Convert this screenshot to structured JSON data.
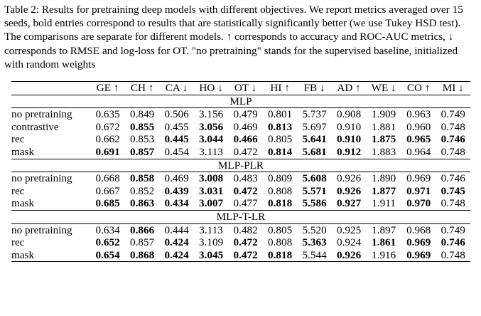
{
  "caption": "Table 2: Results for pretraining deep models with different objectives. We report metrics averaged over 15 seeds, bold entries correspond to results that are statistically significantly better (we use Tukey HSD test). The comparisons are separate for different models. ↑ corresponds to accuracy and ROC-AUC metrics, ↓ corresponds to RMSE and log-loss for OT. \"no pretraining\" stands for the supervised baseline, initialized with random weights",
  "columns": [
    "GE ↑",
    "CH ↑",
    "CA ↓",
    "HO ↓",
    "OT ↓",
    "HI ↑",
    "FB ↓",
    "AD ↑",
    "WE ↓",
    "CO ↑",
    "MI ↓"
  ],
  "sections": [
    {
      "title": "MLP",
      "rows": [
        {
          "name": "no pretraining",
          "values": [
            "0.635",
            "0.849",
            "0.506",
            "3.156",
            "0.479",
            "0.801",
            "5.737",
            "0.908",
            "1.909",
            "0.963",
            "0.749"
          ],
          "bold": [
            false,
            false,
            false,
            false,
            false,
            false,
            false,
            false,
            false,
            false,
            false
          ]
        },
        {
          "name": "contrastive",
          "values": [
            "0.672",
            "0.855",
            "0.455",
            "3.056",
            "0.469",
            "0.813",
            "5.697",
            "0.910",
            "1.881",
            "0.960",
            "0.748"
          ],
          "bold": [
            false,
            true,
            false,
            true,
            false,
            true,
            false,
            false,
            false,
            false,
            false
          ]
        },
        {
          "name": "rec",
          "values": [
            "0.662",
            "0.853",
            "0.445",
            "3.044",
            "0.466",
            "0.805",
            "5.641",
            "0.910",
            "1.875",
            "0.965",
            "0.746"
          ],
          "bold": [
            false,
            false,
            true,
            true,
            true,
            false,
            true,
            true,
            true,
            true,
            true
          ]
        },
        {
          "name": "mask",
          "values": [
            "0.691",
            "0.857",
            "0.454",
            "3.113",
            "0.472",
            "0.814",
            "5.681",
            "0.912",
            "1.883",
            "0.964",
            "0.748"
          ],
          "bold": [
            true,
            true,
            false,
            false,
            false,
            true,
            true,
            true,
            false,
            false,
            false
          ]
        }
      ]
    },
    {
      "title": "MLP-PLR",
      "rows": [
        {
          "name": "no pretraining",
          "values": [
            "0.668",
            "0.858",
            "0.469",
            "3.008",
            "0.483",
            "0.809",
            "5.608",
            "0.926",
            "1.890",
            "0.969",
            "0.746"
          ],
          "bold": [
            false,
            true,
            false,
            true,
            false,
            false,
            true,
            false,
            false,
            false,
            false
          ]
        },
        {
          "name": "rec",
          "values": [
            "0.667",
            "0.852",
            "0.439",
            "3.031",
            "0.472",
            "0.808",
            "5.571",
            "0.926",
            "1.877",
            "0.971",
            "0.745"
          ],
          "bold": [
            false,
            false,
            true,
            true,
            true,
            false,
            true,
            true,
            true,
            true,
            true
          ]
        },
        {
          "name": "mask",
          "values": [
            "0.685",
            "0.863",
            "0.434",
            "3.007",
            "0.477",
            "0.818",
            "5.586",
            "0.927",
            "1.911",
            "0.970",
            "0.748"
          ],
          "bold": [
            true,
            true,
            true,
            true,
            false,
            true,
            true,
            true,
            false,
            true,
            false
          ]
        }
      ]
    },
    {
      "title": "MLP-T-LR",
      "rows": [
        {
          "name": "no pretraining",
          "values": [
            "0.634",
            "0.866",
            "0.444",
            "3.113",
            "0.482",
            "0.805",
            "5.520",
            "0.925",
            "1.897",
            "0.968",
            "0.749"
          ],
          "bold": [
            false,
            true,
            false,
            false,
            false,
            false,
            false,
            false,
            false,
            false,
            false
          ]
        },
        {
          "name": "rec",
          "values": [
            "0.652",
            "0.857",
            "0.424",
            "3.109",
            "0.472",
            "0.808",
            "5.363",
            "0.924",
            "1.861",
            "0.969",
            "0.746"
          ],
          "bold": [
            true,
            false,
            true,
            false,
            true,
            false,
            true,
            false,
            true,
            true,
            true
          ]
        },
        {
          "name": "mask",
          "values": [
            "0.654",
            "0.868",
            "0.424",
            "3.045",
            "0.472",
            "0.818",
            "5.544",
            "0.926",
            "1.916",
            "0.969",
            "0.748"
          ],
          "bold": [
            true,
            true,
            true,
            true,
            true,
            true,
            false,
            true,
            false,
            true,
            false
          ]
        }
      ]
    }
  ]
}
